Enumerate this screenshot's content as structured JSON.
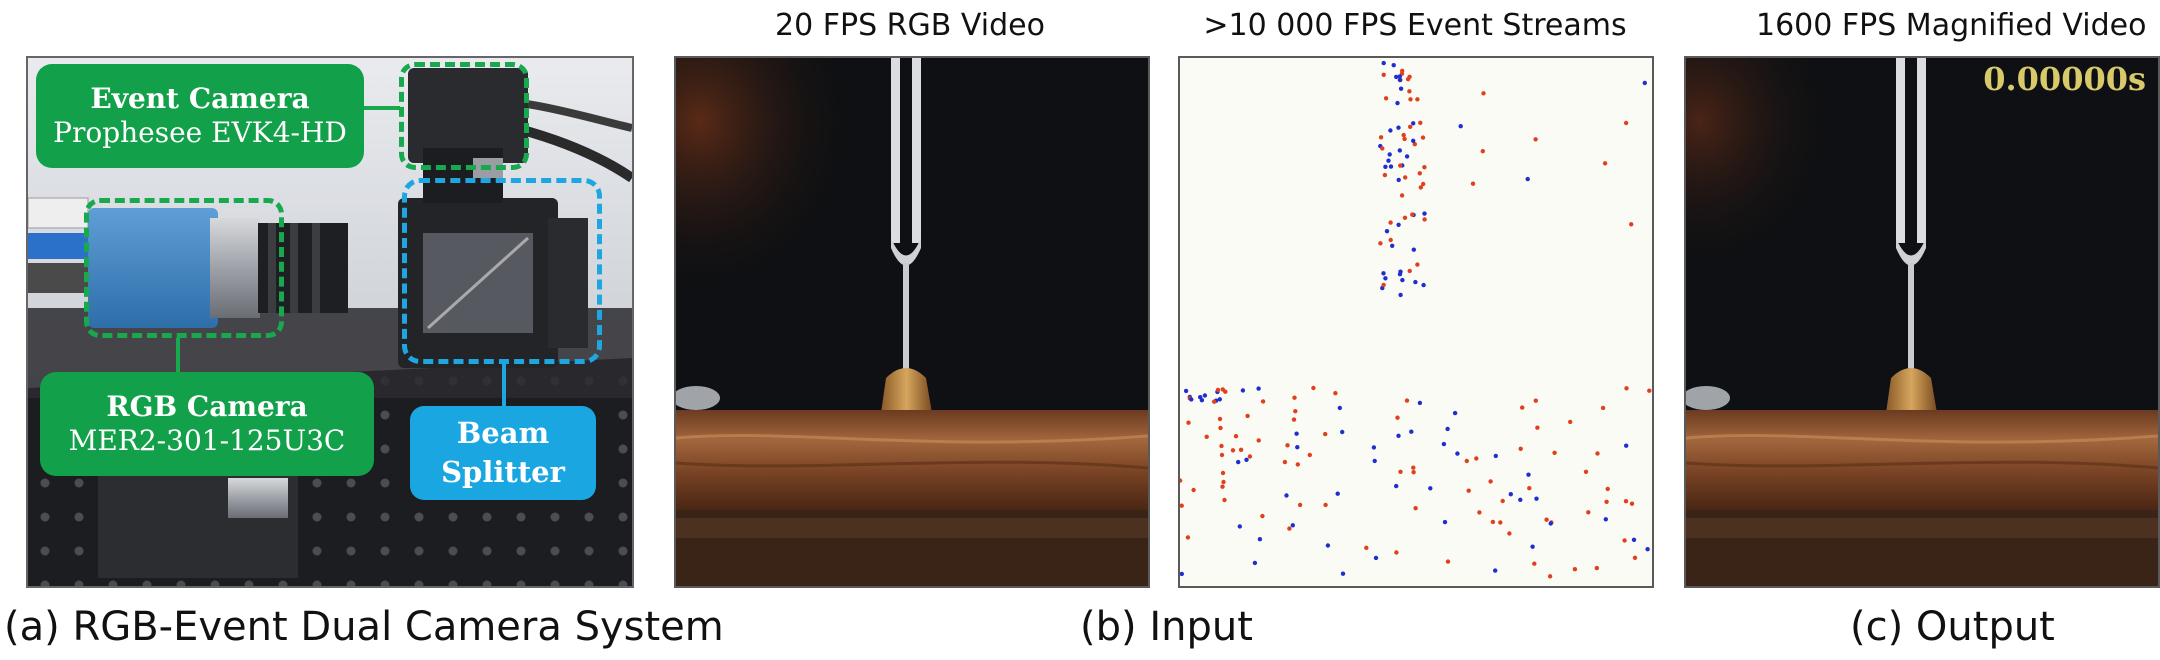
{
  "panel_a": {
    "caption": "(a) RGB-Event Dual Camera System",
    "event_camera": {
      "title": "Event Camera",
      "model": "Prophesee EVK4-HD"
    },
    "rgb_camera": {
      "title": "RGB Camera",
      "model": "MER2-301-125U3C"
    },
    "beam_splitter": {
      "line1": "Beam",
      "line2": "Splitter"
    },
    "colors": {
      "green": "#13a04a",
      "blue": "#1aa6e0"
    }
  },
  "panel_b": {
    "caption": "(b) Input",
    "rgb_title": "20 FPS RGB Video",
    "event_title": ">10 000 FPS Event Streams",
    "colors": {
      "positive_event": "#e0401e",
      "negative_event": "#1f2fcf"
    }
  },
  "panel_c": {
    "caption": "(c) Output",
    "title": "1600 FPS Magnified Video",
    "timestamp": "0.00000s"
  }
}
